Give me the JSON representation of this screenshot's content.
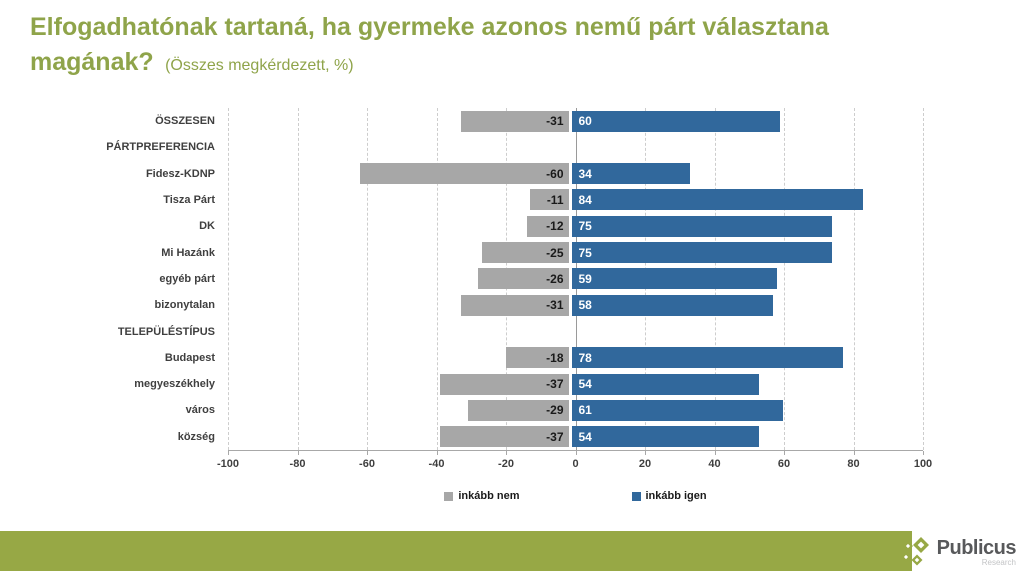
{
  "title": {
    "main": "Elfogadhatónak tartaná, ha gyermeke azonos nemű párt választana magának?",
    "subtitle": "(Összes megkérdezett, %)"
  },
  "chart_data": {
    "type": "bar",
    "orientation": "horizontal",
    "diverging": true,
    "title": "Elfogadhatónak tartaná, ha gyermeke azonos nemű párt választana magának? (Összes megkérdezett, %)",
    "categories": [
      "ÖSSZESEN",
      "PÁRTPREFERENCIA",
      "Fidesz-KDNP",
      "Tisza Párt",
      "DK",
      "Mi Hazánk",
      "egyéb párt",
      "bizonytalan",
      "TELEPÜLÉSTÍPUS",
      "Budapest",
      "megyeszékhely",
      "város",
      "község"
    ],
    "section_header_rows": [
      1,
      8
    ],
    "series": [
      {
        "name": "inkább nem",
        "color": "#A7A7A7",
        "label_color": "#1A1A1A",
        "values": [
          -31,
          null,
          -60,
          -11,
          -12,
          -25,
          -26,
          -31,
          null,
          -18,
          -37,
          -29,
          -37
        ]
      },
      {
        "name": "inkább igen",
        "color": "#31689C",
        "label_color": "#FFFFFF",
        "values": [
          60,
          null,
          34,
          84,
          75,
          75,
          59,
          58,
          null,
          78,
          54,
          61,
          54
        ]
      }
    ],
    "xlim": [
      -100,
      100
    ],
    "x_ticks": [
      -100,
      -80,
      -60,
      -40,
      -20,
      0,
      20,
      40,
      60,
      80,
      100
    ],
    "grid": "vertical-dashed",
    "legend_position": "bottom-center"
  },
  "footer": {
    "brand": "Publicus",
    "brand_sub": "Research"
  },
  "colors": {
    "title_green": "#8FA44A",
    "footer_green": "#97A845",
    "grid_line": "#CDCDCD",
    "zero_line": "#9A9A9A",
    "axis_line": "#A8A8A8",
    "label_text": "#3F3F3F"
  }
}
